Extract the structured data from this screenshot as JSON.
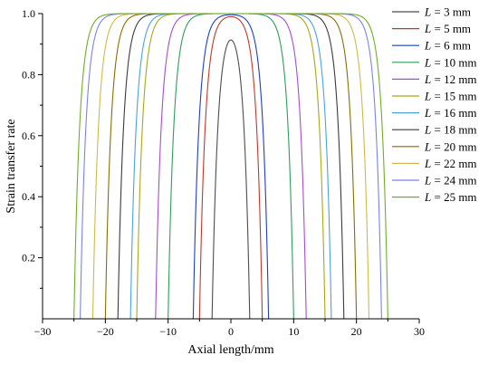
{
  "chart_data": {
    "type": "line",
    "title": "",
    "xlabel": "Axial length/mm",
    "ylabel": "Strain transfer rate",
    "xlim": [
      -30,
      30
    ],
    "ylim": [
      0,
      1.0
    ],
    "xticks": [
      -30,
      -20,
      -10,
      0,
      10,
      20,
      30
    ],
    "xtick_labels": [
      "−30",
      "−20",
      "−10",
      "0",
      "10",
      "20",
      "30"
    ],
    "yticks": [
      0.2,
      0.4,
      0.6,
      0.8,
      1.0
    ],
    "ytick_labels": [
      "0.2",
      "0.4",
      "0.6",
      "0.8",
      "1.0"
    ],
    "grid": false,
    "legend_position": "right",
    "legend_prefix": "L",
    "legend_eq": " = ",
    "series": [
      {
        "name": "3 mm",
        "L": 3,
        "half_length": 3,
        "peak": 0.985,
        "color": "#4d4d4d"
      },
      {
        "name": "5 mm",
        "L": 5,
        "half_length": 5,
        "peak": 0.998,
        "color": "#c0392b"
      },
      {
        "name": "6 mm",
        "L": 6,
        "half_length": 6,
        "peak": 0.999,
        "color": "#1f3fbf"
      },
      {
        "name": "10 mm",
        "L": 10,
        "half_length": 10,
        "peak": 1.0,
        "color": "#2e9e5a"
      },
      {
        "name": "12 mm",
        "L": 12,
        "half_length": 12,
        "peak": 1.0,
        "color": "#a64dcf"
      },
      {
        "name": "15 mm",
        "L": 15,
        "half_length": 15,
        "peak": 1.0,
        "color": "#a8a817"
      },
      {
        "name": "16 mm",
        "L": 16,
        "half_length": 16,
        "peak": 1.0,
        "color": "#4aa3e0"
      },
      {
        "name": "18 mm",
        "L": 18,
        "half_length": 18,
        "peak": 1.0,
        "color": "#3b3b3b"
      },
      {
        "name": "20 mm",
        "L": 20,
        "half_length": 20,
        "peak": 1.0,
        "color": "#8a6d00"
      },
      {
        "name": "22 mm",
        "L": 22,
        "half_length": 22,
        "peak": 1.0,
        "color": "#d2b94a"
      },
      {
        "name": "24 mm",
        "L": 24,
        "half_length": 24,
        "peak": 1.0,
        "color": "#7b84e6"
      },
      {
        "name": "25 mm",
        "L": 25,
        "half_length": 25,
        "peak": 1.0,
        "color": "#6fae2a"
      }
    ]
  }
}
